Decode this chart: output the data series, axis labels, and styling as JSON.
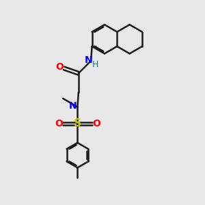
{
  "background_color": "#e8e8e8",
  "bond_color": "#1a1a1a",
  "bond_width": 1.8,
  "N_color": "#0000ff",
  "O_color": "#ff0000",
  "S_color": "#cccc00",
  "H_color": "#008080",
  "figsize": [
    3.0,
    3.0
  ],
  "dpi": 100,
  "xlim": [
    0,
    10
  ],
  "ylim": [
    0,
    10
  ]
}
